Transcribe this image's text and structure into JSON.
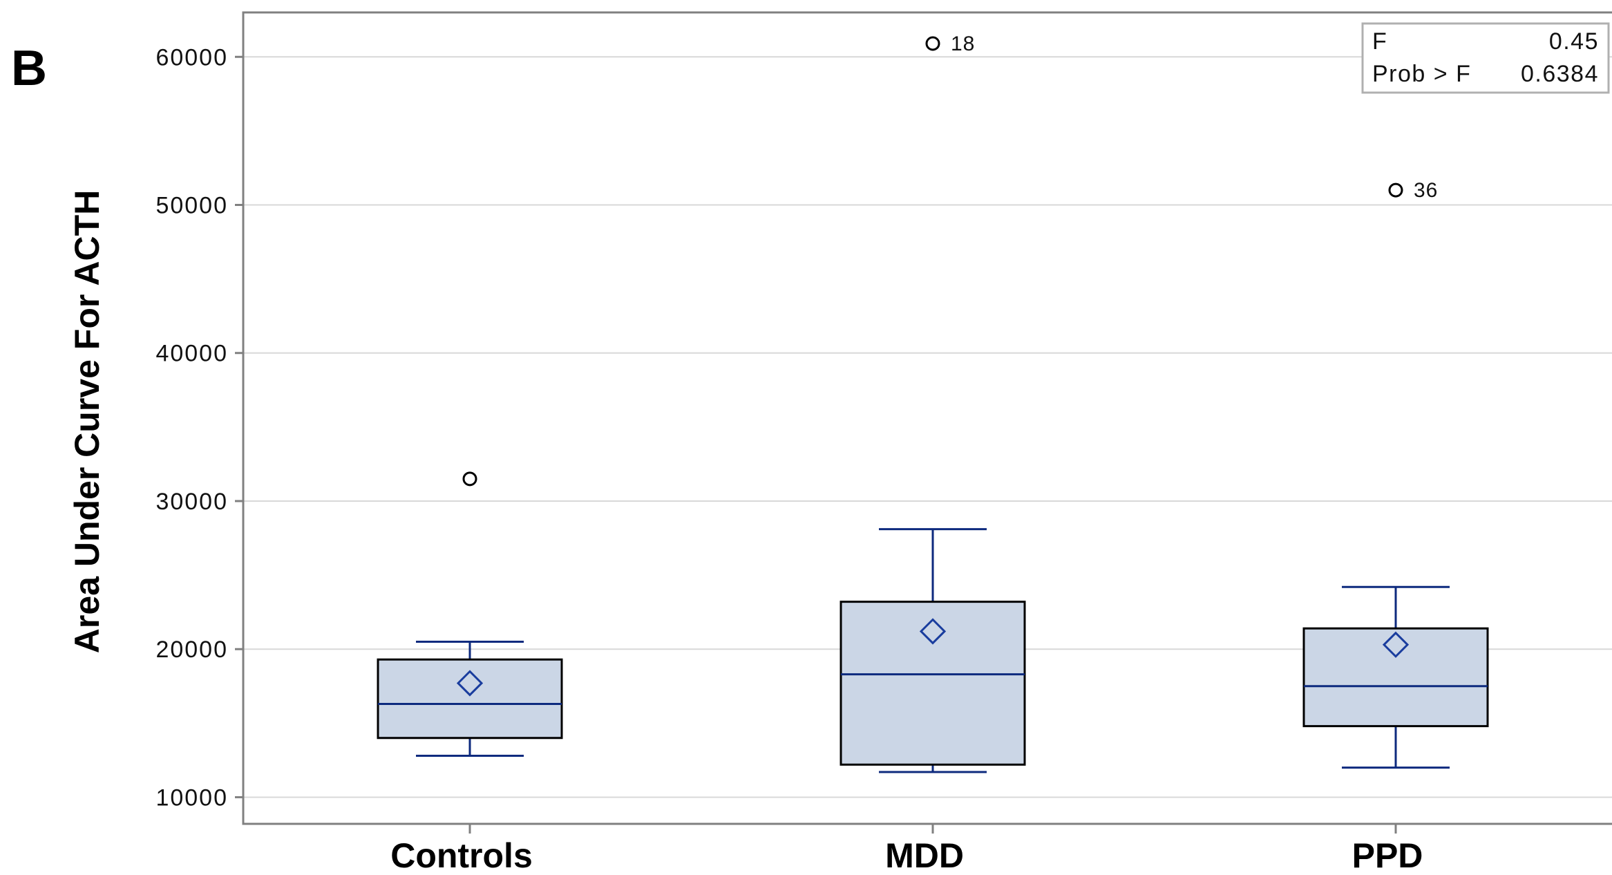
{
  "panel_label": "B",
  "chart_data": {
    "type": "boxplot",
    "title": "",
    "xlabel": "",
    "ylabel": "Area Under Curve For ACTH",
    "ylim": [
      8200,
      63000
    ],
    "yticks": [
      10000,
      20000,
      30000,
      40000,
      50000,
      60000
    ],
    "ytick_labels": [
      "10000",
      "20000",
      "30000",
      "40000",
      "50000",
      "60000"
    ],
    "grid": true,
    "categories": [
      "Controls",
      "MDD",
      "PPD"
    ],
    "boxes": [
      {
        "category": "Controls",
        "whisker_low": 12800,
        "q1": 14000,
        "median": 16300,
        "q3": 19300,
        "whisker_high": 20500,
        "mean": 17700,
        "outliers": [
          {
            "value": 31500,
            "label": ""
          }
        ]
      },
      {
        "category": "MDD",
        "whisker_low": 11700,
        "q1": 12200,
        "median": 18300,
        "q3": 23200,
        "whisker_high": 28100,
        "mean": 21200,
        "outliers": [
          {
            "value": 60900,
            "label": "18"
          }
        ]
      },
      {
        "category": "PPD",
        "whisker_low": 12000,
        "q1": 14800,
        "median": 17500,
        "q3": 21400,
        "whisker_high": 24200,
        "mean": 20300,
        "outliers": [
          {
            "value": 51000,
            "label": "36"
          }
        ]
      }
    ],
    "stats": {
      "rows": [
        {
          "label": "F",
          "value": "0.45"
        },
        {
          "label": "Prob > F",
          "value": "0.6384"
        }
      ],
      "placement": "top-right"
    },
    "colors": {
      "box_fill": "#cbd6e6",
      "box_edge": "#000000",
      "whisker": "#0d2a7e",
      "median": "#0d2a7e",
      "mean_marker": "#1a3d9e",
      "outlier": "#000000",
      "grid": "#d8d8d8",
      "frame": "#808080"
    }
  }
}
